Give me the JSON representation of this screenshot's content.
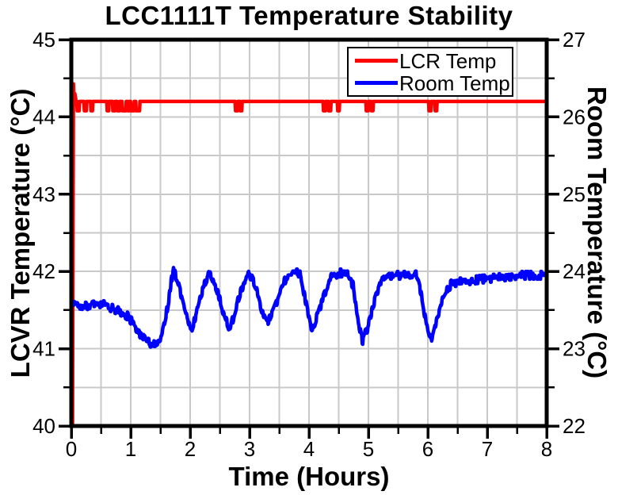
{
  "chart_data": {
    "type": "line",
    "title": "LCC1111T Temperature Stability",
    "xlabel": "Time (Hours)",
    "ylabel_left": "LCVR Temperature (°C)",
    "ylabel_right": "Room Temperature (°C)",
    "xlim": [
      0,
      8
    ],
    "ylim_left": [
      40,
      45
    ],
    "ylim_right": [
      22,
      27
    ],
    "x_major_ticks": [
      0,
      1,
      2,
      3,
      4,
      5,
      6,
      7,
      8
    ],
    "y_major_ticks_left": [
      40,
      41,
      42,
      43,
      44,
      45
    ],
    "y_major_ticks_right": [
      22,
      23,
      24,
      25,
      26,
      27
    ],
    "minor_step": 0.5,
    "grid": {
      "show": true,
      "step_x": 0.5,
      "step_y": 0.5,
      "color": "#c9c9c9"
    },
    "legend": {
      "position": "top-center",
      "entries": [
        {
          "label": "LCR Temp",
          "color": "#ff0000"
        },
        {
          "label": "Room Temp",
          "color": "#0000ff"
        }
      ]
    },
    "series": [
      {
        "name": "LCR Temp",
        "color": "#ff0000",
        "axis": "left",
        "description": "Rises from 40 at t=0.02h, brief overshoot to 44.45, then flat at 44.2 C with brief glitch dips to 44.08",
        "keypoints": [
          [
            0.02,
            40.0
          ],
          [
            0.035,
            44.45
          ],
          [
            0.05,
            44.12
          ],
          [
            0.06,
            44.3
          ],
          [
            0.08,
            44.2
          ],
          [
            8.0,
            44.2
          ]
        ],
        "dips": [
          [
            0.1,
            0.14
          ],
          [
            0.22,
            0.26
          ],
          [
            0.33,
            0.36
          ],
          [
            0.6,
            0.63
          ],
          [
            0.7,
            0.74
          ],
          [
            0.78,
            0.82
          ],
          [
            0.86,
            0.92
          ],
          [
            0.95,
            0.98
          ],
          [
            1.0,
            1.06
          ],
          [
            1.09,
            1.15
          ],
          [
            2.76,
            2.8
          ],
          [
            2.84,
            2.87
          ],
          [
            4.24,
            4.28
          ],
          [
            4.33,
            4.37
          ],
          [
            4.48,
            4.51
          ],
          [
            4.96,
            5.0
          ],
          [
            5.05,
            5.08
          ],
          [
            6.02,
            6.06
          ],
          [
            6.12,
            6.15
          ]
        ],
        "dip_value": 44.08,
        "noise_amp": 0
      },
      {
        "name": "Room Temp",
        "color": "#0000ff",
        "axis": "right",
        "description": "Noisy room temperature in C (right axis), oscillating between about 23.0 and 24.05",
        "keypoints": [
          [
            0.0,
            23.6
          ],
          [
            0.1,
            23.57
          ],
          [
            0.25,
            23.55
          ],
          [
            0.4,
            23.6
          ],
          [
            0.55,
            23.57
          ],
          [
            0.7,
            23.52
          ],
          [
            0.85,
            23.47
          ],
          [
            0.95,
            23.42
          ],
          [
            1.05,
            23.32
          ],
          [
            1.15,
            23.2
          ],
          [
            1.25,
            23.1
          ],
          [
            1.4,
            23.05
          ],
          [
            1.5,
            23.1
          ],
          [
            1.6,
            23.45
          ],
          [
            1.72,
            24.05
          ],
          [
            1.8,
            23.85
          ],
          [
            1.9,
            23.55
          ],
          [
            2.02,
            23.25
          ],
          [
            2.1,
            23.45
          ],
          [
            2.2,
            23.75
          ],
          [
            2.33,
            23.98
          ],
          [
            2.45,
            23.75
          ],
          [
            2.55,
            23.5
          ],
          [
            2.67,
            23.25
          ],
          [
            2.8,
            23.6
          ],
          [
            2.9,
            23.85
          ],
          [
            3.0,
            23.97
          ],
          [
            3.1,
            23.8
          ],
          [
            3.2,
            23.5
          ],
          [
            3.3,
            23.32
          ],
          [
            3.4,
            23.5
          ],
          [
            3.55,
            23.8
          ],
          [
            3.65,
            23.98
          ],
          [
            3.85,
            23.98
          ],
          [
            3.95,
            23.6
          ],
          [
            4.05,
            23.2
          ],
          [
            4.15,
            23.45
          ],
          [
            4.25,
            23.7
          ],
          [
            4.38,
            23.93
          ],
          [
            4.5,
            23.98
          ],
          [
            4.65,
            23.98
          ],
          [
            4.75,
            23.8
          ],
          [
            4.82,
            23.4
          ],
          [
            4.9,
            23.1
          ],
          [
            5.0,
            23.3
          ],
          [
            5.1,
            23.6
          ],
          [
            5.2,
            23.85
          ],
          [
            5.35,
            23.95
          ],
          [
            5.6,
            23.95
          ],
          [
            5.8,
            23.98
          ],
          [
            5.88,
            23.75
          ],
          [
            5.98,
            23.3
          ],
          [
            6.05,
            23.08
          ],
          [
            6.15,
            23.4
          ],
          [
            6.25,
            23.65
          ],
          [
            6.4,
            23.85
          ],
          [
            6.6,
            23.87
          ],
          [
            6.9,
            23.9
          ],
          [
            7.2,
            23.92
          ],
          [
            7.5,
            23.95
          ],
          [
            7.8,
            23.95
          ],
          [
            8.0,
            23.95
          ]
        ],
        "noise_amp": 0.05,
        "noise_quantum": 0.025
      }
    ]
  }
}
